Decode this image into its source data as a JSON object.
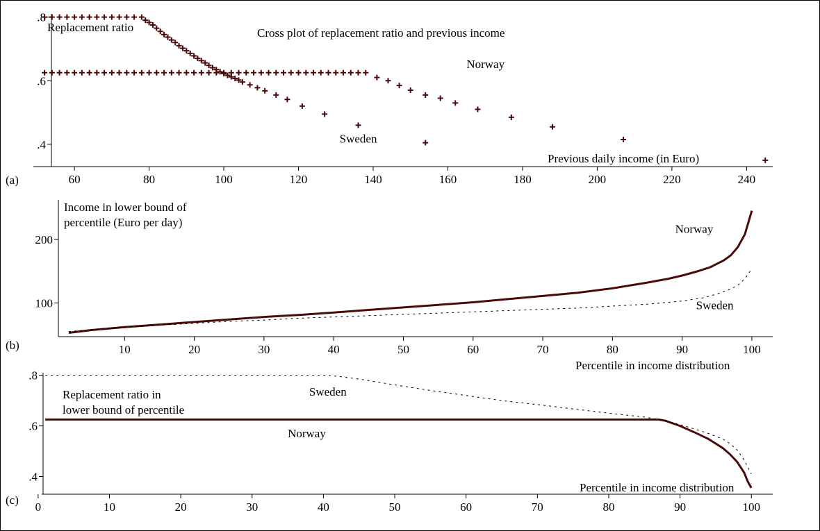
{
  "colors": {
    "series": "#4a0a0a",
    "dashed": "#000000",
    "axis": "#000000",
    "frame": "#000000"
  },
  "chart_data": [
    {
      "type": "scatter",
      "panel_label": "(a)",
      "title": "Cross plot of replacement ratio and previous income",
      "xlabel": "Previous daily income (in Euro)",
      "ylabel": "Replacement ratio",
      "xlim": [
        49,
        247
      ],
      "ylim": [
        0.33,
        0.81
      ],
      "xticks": [
        60,
        80,
        100,
        120,
        140,
        160,
        180,
        200,
        220,
        240
      ],
      "xtick_labels": [
        "60",
        "80",
        "100",
        "120",
        "140",
        "160",
        "180",
        "200",
        "220",
        "240"
      ],
      "yticks": [
        0.4,
        0.6,
        0.8
      ],
      "ytick_labels": [
        ".4",
        ".6",
        ".8"
      ],
      "grid": false,
      "marker": "plus",
      "annotations": [
        {
          "text": "Norway",
          "x": 165,
          "y": 0.64
        },
        {
          "text": "Sweden",
          "x": 131,
          "y": 0.405
        }
      ],
      "series": [
        {
          "name": "Norway",
          "x": [
            52,
            54,
            56,
            58,
            60,
            62,
            64,
            66,
            68,
            70,
            72,
            74,
            76,
            78,
            80,
            82,
            84,
            86,
            88,
            90,
            92,
            94,
            96,
            98,
            100,
            102,
            104,
            106,
            108,
            110,
            112,
            114,
            116,
            118,
            120,
            122,
            124,
            126,
            128,
            130,
            132,
            134,
            136,
            138,
            141,
            144,
            147,
            150,
            154,
            158,
            162,
            168,
            177,
            188,
            207,
            245
          ],
          "y": [
            0.625,
            0.625,
            0.625,
            0.625,
            0.625,
            0.625,
            0.625,
            0.625,
            0.625,
            0.625,
            0.625,
            0.625,
            0.625,
            0.625,
            0.625,
            0.625,
            0.625,
            0.625,
            0.625,
            0.625,
            0.625,
            0.625,
            0.625,
            0.625,
            0.625,
            0.625,
            0.625,
            0.625,
            0.625,
            0.625,
            0.625,
            0.625,
            0.625,
            0.625,
            0.625,
            0.625,
            0.625,
            0.625,
            0.625,
            0.625,
            0.625,
            0.625,
            0.625,
            0.625,
            0.61,
            0.6,
            0.585,
            0.57,
            0.555,
            0.545,
            0.53,
            0.51,
            0.485,
            0.455,
            0.415,
            0.35
          ]
        },
        {
          "name": "Sweden",
          "x": [
            52,
            54,
            56,
            58,
            60,
            62,
            64,
            66,
            68,
            70,
            72,
            74,
            76,
            78,
            79,
            80,
            81,
            82,
            83,
            84,
            85,
            86,
            87,
            88,
            89,
            90,
            91,
            92,
            93,
            94,
            95,
            96,
            97,
            98,
            99,
            100,
            101,
            102,
            103,
            104,
            105,
            107,
            109,
            111,
            114,
            117,
            121,
            127,
            136,
            154
          ],
          "y": [
            0.8,
            0.8,
            0.8,
            0.8,
            0.8,
            0.8,
            0.8,
            0.8,
            0.8,
            0.8,
            0.8,
            0.8,
            0.8,
            0.8,
            0.79,
            0.783,
            0.775,
            0.765,
            0.755,
            0.745,
            0.737,
            0.728,
            0.72,
            0.71,
            0.702,
            0.694,
            0.686,
            0.678,
            0.67,
            0.663,
            0.656,
            0.648,
            0.641,
            0.635,
            0.628,
            0.622,
            0.617,
            0.612,
            0.607,
            0.602,
            0.596,
            0.587,
            0.578,
            0.568,
            0.555,
            0.541,
            0.52,
            0.495,
            0.46,
            0.405
          ]
        }
      ]
    },
    {
      "type": "line",
      "panel_label": "(b)",
      "xlabel": "Percentile in income distribution",
      "ylabel": "Income in lower bound of\npercentile (Euro per day)",
      "xlim": [
        0.5,
        103
      ],
      "ylim": [
        47,
        262
      ],
      "xticks": [
        10,
        20,
        30,
        40,
        50,
        60,
        70,
        80,
        90,
        100
      ],
      "xtick_labels": [
        "10",
        "20",
        "30",
        "40",
        "50",
        "60",
        "70",
        "80",
        "90",
        "100"
      ],
      "yticks": [
        100,
        200
      ],
      "ytick_labels": [
        "100",
        "200"
      ],
      "grid": false,
      "annotations": [
        {
          "text": "Norway",
          "x": 89,
          "y": 210
        },
        {
          "text": "Sweden",
          "x": 92,
          "y": 90
        }
      ],
      "series": [
        {
          "name": "Norway",
          "style": "solid",
          "x": [
            2,
            5,
            10,
            15,
            20,
            25,
            30,
            35,
            40,
            45,
            50,
            55,
            60,
            65,
            70,
            75,
            80,
            85,
            88,
            90,
            92,
            94,
            96,
            97,
            98,
            99,
            100
          ],
          "y": [
            53,
            57,
            62,
            66,
            70,
            74,
            78,
            81,
            85,
            89,
            93,
            97,
            101,
            106,
            111,
            116,
            123,
            132,
            138,
            143,
            149,
            156,
            167,
            175,
            188,
            208,
            245
          ]
        },
        {
          "name": "Sweden",
          "style": "dashed",
          "x": [
            2,
            5,
            10,
            15,
            20,
            25,
            30,
            35,
            40,
            45,
            50,
            55,
            60,
            65,
            70,
            75,
            80,
            85,
            90,
            93,
            95,
            97,
            98,
            99,
            100
          ],
          "y": [
            55,
            58,
            62,
            65,
            68,
            71,
            73,
            76,
            78,
            80,
            82,
            84,
            86,
            88,
            90,
            92,
            95,
            98,
            103,
            108,
            114,
            122,
            128,
            138,
            154
          ]
        }
      ]
    },
    {
      "type": "line",
      "panel_label": "(c)",
      "xlabel": "Percentile in income distribution",
      "ylabel": "Replacement ratio in\nlower bound of percentile",
      "xlim": [
        0.5,
        103
      ],
      "ylim": [
        0.33,
        0.81
      ],
      "xticks": [
        0,
        10,
        20,
        30,
        40,
        50,
        60,
        70,
        80,
        90,
        100
      ],
      "xtick_labels": [
        "0",
        "10",
        "20",
        "30",
        "40",
        "50",
        "60",
        "70",
        "80",
        "90",
        "100"
      ],
      "yticks": [
        0.4,
        0.6,
        0.8
      ],
      "ytick_labels": [
        ".4",
        ".6",
        ".8"
      ],
      "grid": false,
      "annotations": [
        {
          "text": "Sweden",
          "x": 38,
          "y": 0.72
        },
        {
          "text": "Norway",
          "x": 35,
          "y": 0.555
        }
      ],
      "series": [
        {
          "name": "Norway",
          "style": "solid",
          "x": [
            1,
            10,
            20,
            30,
            40,
            50,
            60,
            70,
            80,
            87,
            88,
            90,
            92,
            94,
            96,
            97,
            98,
            99,
            99.5,
            100
          ],
          "y": [
            0.625,
            0.625,
            0.625,
            0.625,
            0.625,
            0.625,
            0.625,
            0.625,
            0.625,
            0.625,
            0.62,
            0.6,
            0.575,
            0.548,
            0.512,
            0.488,
            0.458,
            0.415,
            0.38,
            0.355
          ]
        },
        {
          "name": "Sweden",
          "style": "dashed",
          "x": [
            1,
            10,
            20,
            30,
            40,
            42,
            45,
            50,
            55,
            60,
            65,
            70,
            75,
            80,
            85,
            88,
            90,
            92,
            94,
            96,
            97,
            98,
            99,
            100
          ],
          "y": [
            0.8,
            0.8,
            0.8,
            0.8,
            0.8,
            0.796,
            0.785,
            0.762,
            0.74,
            0.72,
            0.7,
            0.684,
            0.667,
            0.65,
            0.635,
            0.62,
            0.605,
            0.588,
            0.57,
            0.548,
            0.53,
            0.505,
            0.465,
            0.41
          ]
        }
      ]
    }
  ]
}
